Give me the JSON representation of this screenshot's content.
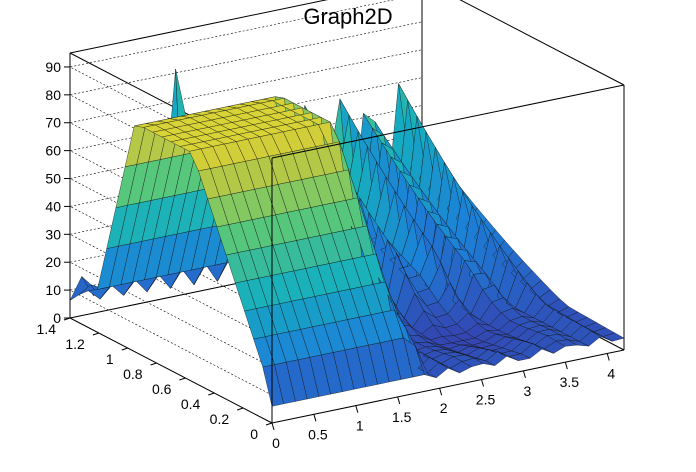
{
  "chart_data": {
    "type": "surface",
    "title": "Graph2D",
    "x_ticks": [
      "0",
      "0.5",
      "1",
      "1.5",
      "2",
      "2.5",
      "3",
      "3.5",
      "4"
    ],
    "y_ticks": [
      "0",
      "0.2",
      "0.4",
      "0.6",
      "0.8",
      "1",
      "1.2",
      "1.4"
    ],
    "z_ticks": [
      "0",
      "10",
      "20",
      "30",
      "40",
      "50",
      "60",
      "70",
      "80",
      "90"
    ],
    "xlim": [
      0,
      4.2
    ],
    "ylim": [
      0,
      1.4
    ],
    "zlim": [
      0,
      95
    ],
    "grid": true,
    "colormap": "viridis-like (blue to yellow)",
    "surface_description_values": {
      "plateau_height": 82,
      "plateau_x_range": [
        0.0,
        1.9
      ],
      "plateau_y_range": [
        0.55,
        0.95
      ],
      "ripple_peak_height": 60,
      "spike_peak_height": 95,
      "spike_location": [
        1.3,
        1.4
      ]
    }
  }
}
